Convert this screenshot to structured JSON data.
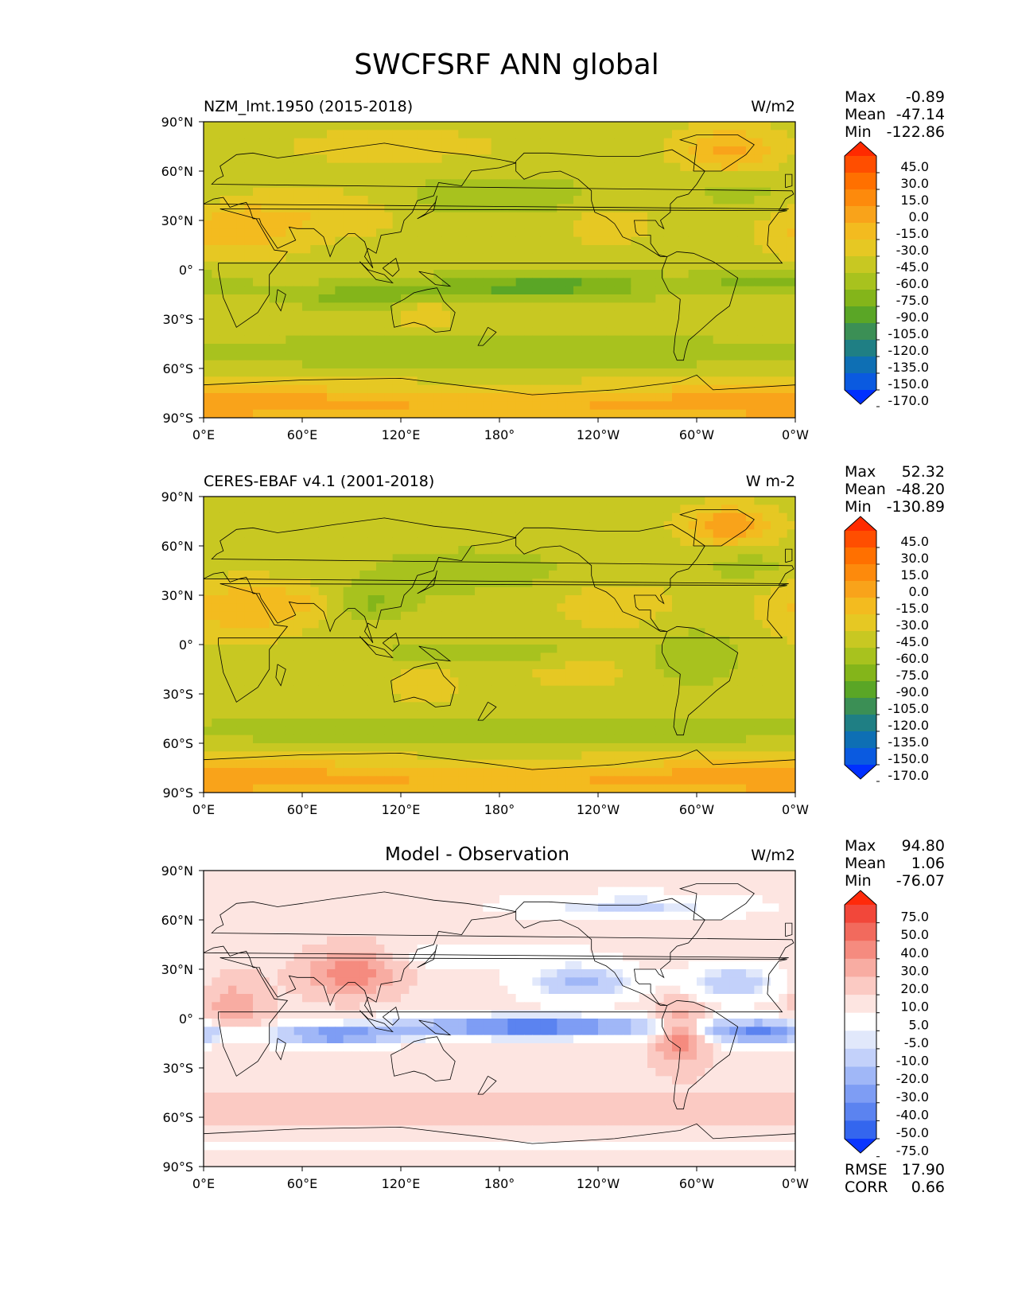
{
  "figure": {
    "title": "SWCFSRF ANN global"
  },
  "chart_data": [
    {
      "type": "heatmap",
      "title": "NZM_lmt.1950 (2015-2018)",
      "units": "W/m2",
      "stats": [
        {
          "label": "Max",
          "value": "-0.89"
        },
        {
          "label": "Mean",
          "value": "-47.14"
        },
        {
          "label": "Min",
          "value": "-122.86"
        }
      ],
      "x_ticks": [
        "0°E",
        "60°E",
        "120°E",
        "180°",
        "120°W",
        "60°W",
        "0°W"
      ],
      "y_ticks": [
        "90°N",
        "60°N",
        "30°N",
        "0°",
        "30°S",
        "60°S",
        "90°S"
      ],
      "xlim": [
        0,
        360
      ],
      "ylim": [
        -90,
        90
      ],
      "colorbar": {
        "levels": [
          "45.0",
          "30.0",
          "15.0",
          "0.0",
          "-15.0",
          "-30.0",
          "-45.0",
          "-60.0",
          "-75.0",
          "-90.0",
          "-105.0",
          "-120.0",
          "-135.0",
          "-150.0",
          "-170.0"
        ],
        "colors": [
          "#ff2a00",
          "#ff4e00",
          "#ff7000",
          "#fd8a0c",
          "#f9a31a",
          "#f3bb1f",
          "#e6c823",
          "#c8c822",
          "#a8c21e",
          "#84b51a",
          "#5aa626",
          "#3b8f55",
          "#1f7f84",
          "#0e6fb4",
          "#0a5ae0",
          "#0030ff"
        ]
      }
    },
    {
      "type": "heatmap",
      "title": "CERES-EBAF v4.1 (2001-2018)",
      "units": "W m-2",
      "stats": [
        {
          "label": "Max",
          "value": "52.32"
        },
        {
          "label": "Mean",
          "value": "-48.20"
        },
        {
          "label": "Min",
          "value": "-130.89"
        }
      ],
      "x_ticks": [
        "0°E",
        "60°E",
        "120°E",
        "180°",
        "120°W",
        "60°W",
        "0°W"
      ],
      "y_ticks": [
        "90°N",
        "60°N",
        "30°N",
        "0°",
        "30°S",
        "60°S",
        "90°S"
      ],
      "xlim": [
        0,
        360
      ],
      "ylim": [
        -90,
        90
      ],
      "colorbar": {
        "levels": [
          "45.0",
          "30.0",
          "15.0",
          "0.0",
          "-15.0",
          "-30.0",
          "-45.0",
          "-60.0",
          "-75.0",
          "-90.0",
          "-105.0",
          "-120.0",
          "-135.0",
          "-150.0",
          "-170.0"
        ],
        "colors": [
          "#ff2a00",
          "#ff4e00",
          "#ff7000",
          "#fd8a0c",
          "#f9a31a",
          "#f3bb1f",
          "#e6c823",
          "#c8c822",
          "#a8c21e",
          "#84b51a",
          "#5aa626",
          "#3b8f55",
          "#1f7f84",
          "#0e6fb4",
          "#0a5ae0",
          "#0030ff"
        ]
      }
    },
    {
      "type": "heatmap",
      "title": "Model - Observation",
      "units": "W/m2",
      "stats": [
        {
          "label": "Max",
          "value": "94.80"
        },
        {
          "label": "Mean",
          "value": "1.06"
        },
        {
          "label": "Min",
          "value": "-76.07"
        }
      ],
      "extra_stats": [
        {
          "label": "RMSE",
          "value": "17.90"
        },
        {
          "label": "CORR",
          "value": "0.66"
        }
      ],
      "x_ticks": [
        "0°E",
        "60°E",
        "120°E",
        "180°",
        "120°W",
        "60°W",
        "0°W"
      ],
      "y_ticks": [
        "90°N",
        "60°N",
        "30°N",
        "0°",
        "30°S",
        "60°S",
        "90°S"
      ],
      "xlim": [
        0,
        360
      ],
      "ylim": [
        -90,
        90
      ],
      "colorbar": {
        "levels": [
          "75.0",
          "50.0",
          "40.0",
          "30.0",
          "20.0",
          "10.0",
          "5.0",
          "-5.0",
          "-10.0",
          "-20.0",
          "-30.0",
          "-40.0",
          "-50.0",
          "-75.0"
        ],
        "colors": [
          "#ff2a0a",
          "#f2473a",
          "#f26a5d",
          "#f58b7f",
          "#f8aca2",
          "#fbcac3",
          "#fde5e1",
          "#ffffff",
          "#e1e8fb",
          "#c3d1fa",
          "#a0b7f7",
          "#7e9df4",
          "#5b83f0",
          "#3466ee",
          "#0a36ff"
        ]
      }
    }
  ]
}
